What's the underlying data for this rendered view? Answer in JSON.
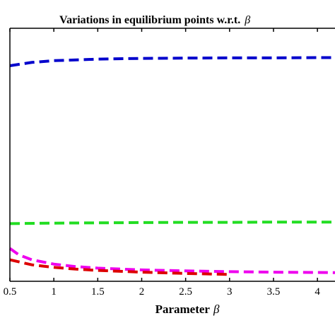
{
  "chart_data": {
    "type": "line",
    "title": "Variations in equilibrium points w.r.t.",
    "title_symbol": "β",
    "xlabel": "Parameter",
    "xlabel_symbol": "β",
    "ylabel": "",
    "xlim": [
      0.5,
      4.2
    ],
    "ylim": [
      0,
      1
    ],
    "x_ticks": [
      0.5,
      1,
      1.5,
      2,
      2.5,
      3,
      3.5,
      4
    ],
    "x_tick_labels": [
      "0.5",
      "1",
      "1.5",
      "2",
      "2.5",
      "3",
      "3.5",
      "4"
    ],
    "grid": false,
    "line_style": "dashed",
    "series": [
      {
        "color": "#0000cc",
        "x": [
          0.5,
          0.75,
          1,
          1.5,
          2,
          2.5,
          3,
          3.5,
          4,
          4.2
        ],
        "y": [
          0.852,
          0.865,
          0.872,
          0.878,
          0.881,
          0.882,
          0.883,
          0.883,
          0.884,
          0.884
        ]
      },
      {
        "color": "#22dd22",
        "x": [
          0.5,
          1,
          1.5,
          2,
          2.5,
          3,
          3.5,
          4,
          4.2
        ],
        "y": [
          0.228,
          0.23,
          0.231,
          0.232,
          0.233,
          0.233,
          0.234,
          0.234,
          0.234
        ]
      },
      {
        "color": "#ee00ee",
        "x": [
          0.5,
          0.6,
          0.75,
          1,
          1.25,
          1.5,
          2,
          2.5,
          3,
          3.5,
          4,
          4.2
        ],
        "y": [
          0.13,
          0.105,
          0.085,
          0.068,
          0.058,
          0.052,
          0.045,
          0.041,
          0.038,
          0.036,
          0.035,
          0.034
        ]
      },
      {
        "color": "#dd0000",
        "x": [
          0.5,
          0.75,
          1,
          1.25,
          1.5,
          2,
          2.5,
          3
        ],
        "y": [
          0.085,
          0.065,
          0.055,
          0.048,
          0.043,
          0.036,
          0.031,
          0.027
        ]
      }
    ]
  }
}
